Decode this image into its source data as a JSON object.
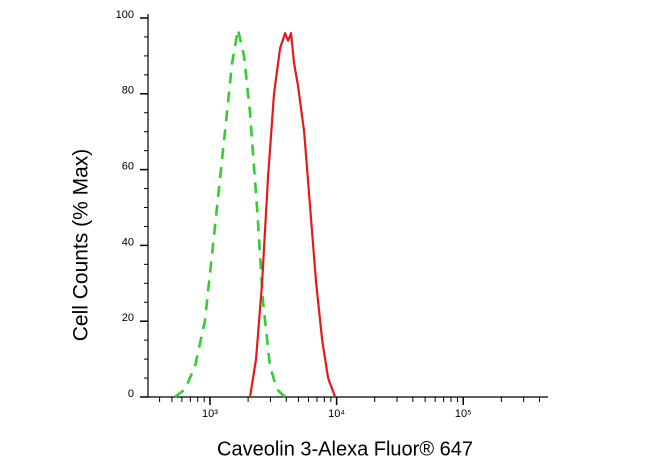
{
  "chart_data": {
    "type": "line",
    "xlabel": "Caveolin 3-Alexa Fluor® 647",
    "ylabel": "Cell Counts (% Max)",
    "xscale": "log",
    "xlim": [
      324,
      467000
    ],
    "ylim": [
      0,
      100
    ],
    "xticks": [
      {
        "value": 1000,
        "label": "10³"
      },
      {
        "value": 10000,
        "label": "10⁴"
      },
      {
        "value": 100000,
        "label": "10⁵"
      }
    ],
    "xminorticks": [
      400,
      500,
      600,
      700,
      800,
      900,
      2000,
      3000,
      4000,
      5000,
      6000,
      7000,
      8000,
      9000,
      20000,
      30000,
      40000,
      50000,
      60000,
      70000,
      80000,
      90000,
      200000,
      300000,
      400000
    ],
    "yticks": [
      0,
      20,
      40,
      60,
      80,
      100
    ],
    "yminorticks": [
      5,
      10,
      15,
      25,
      30,
      35,
      45,
      50,
      55,
      65,
      70,
      75,
      85,
      90,
      95
    ],
    "series": [
      {
        "color": "#33cc33",
        "dashed": true,
        "x": [
          528,
          634,
          760,
          912,
          1095,
          1314,
          1493,
          1664,
          1857,
          2071,
          2353,
          2625,
          2981,
          3385,
          3916
        ],
        "values": [
          0,
          2,
          8,
          20,
          45,
          70,
          88,
          97,
          90,
          75,
          50,
          25,
          8,
          2,
          0
        ]
      },
      {
        "color": "#e31a1c",
        "dashed": false,
        "x": [
          2071,
          2311,
          2578,
          2873,
          3204,
          3575,
          3916,
          4140,
          4366,
          4615,
          4963,
          5540,
          6180,
          6895,
          7690,
          8570,
          9730
        ],
        "values": [
          0,
          10,
          30,
          58,
          80,
          92,
          96,
          94,
          96,
          88,
          82,
          70,
          50,
          30,
          15,
          5,
          0
        ]
      }
    ]
  }
}
